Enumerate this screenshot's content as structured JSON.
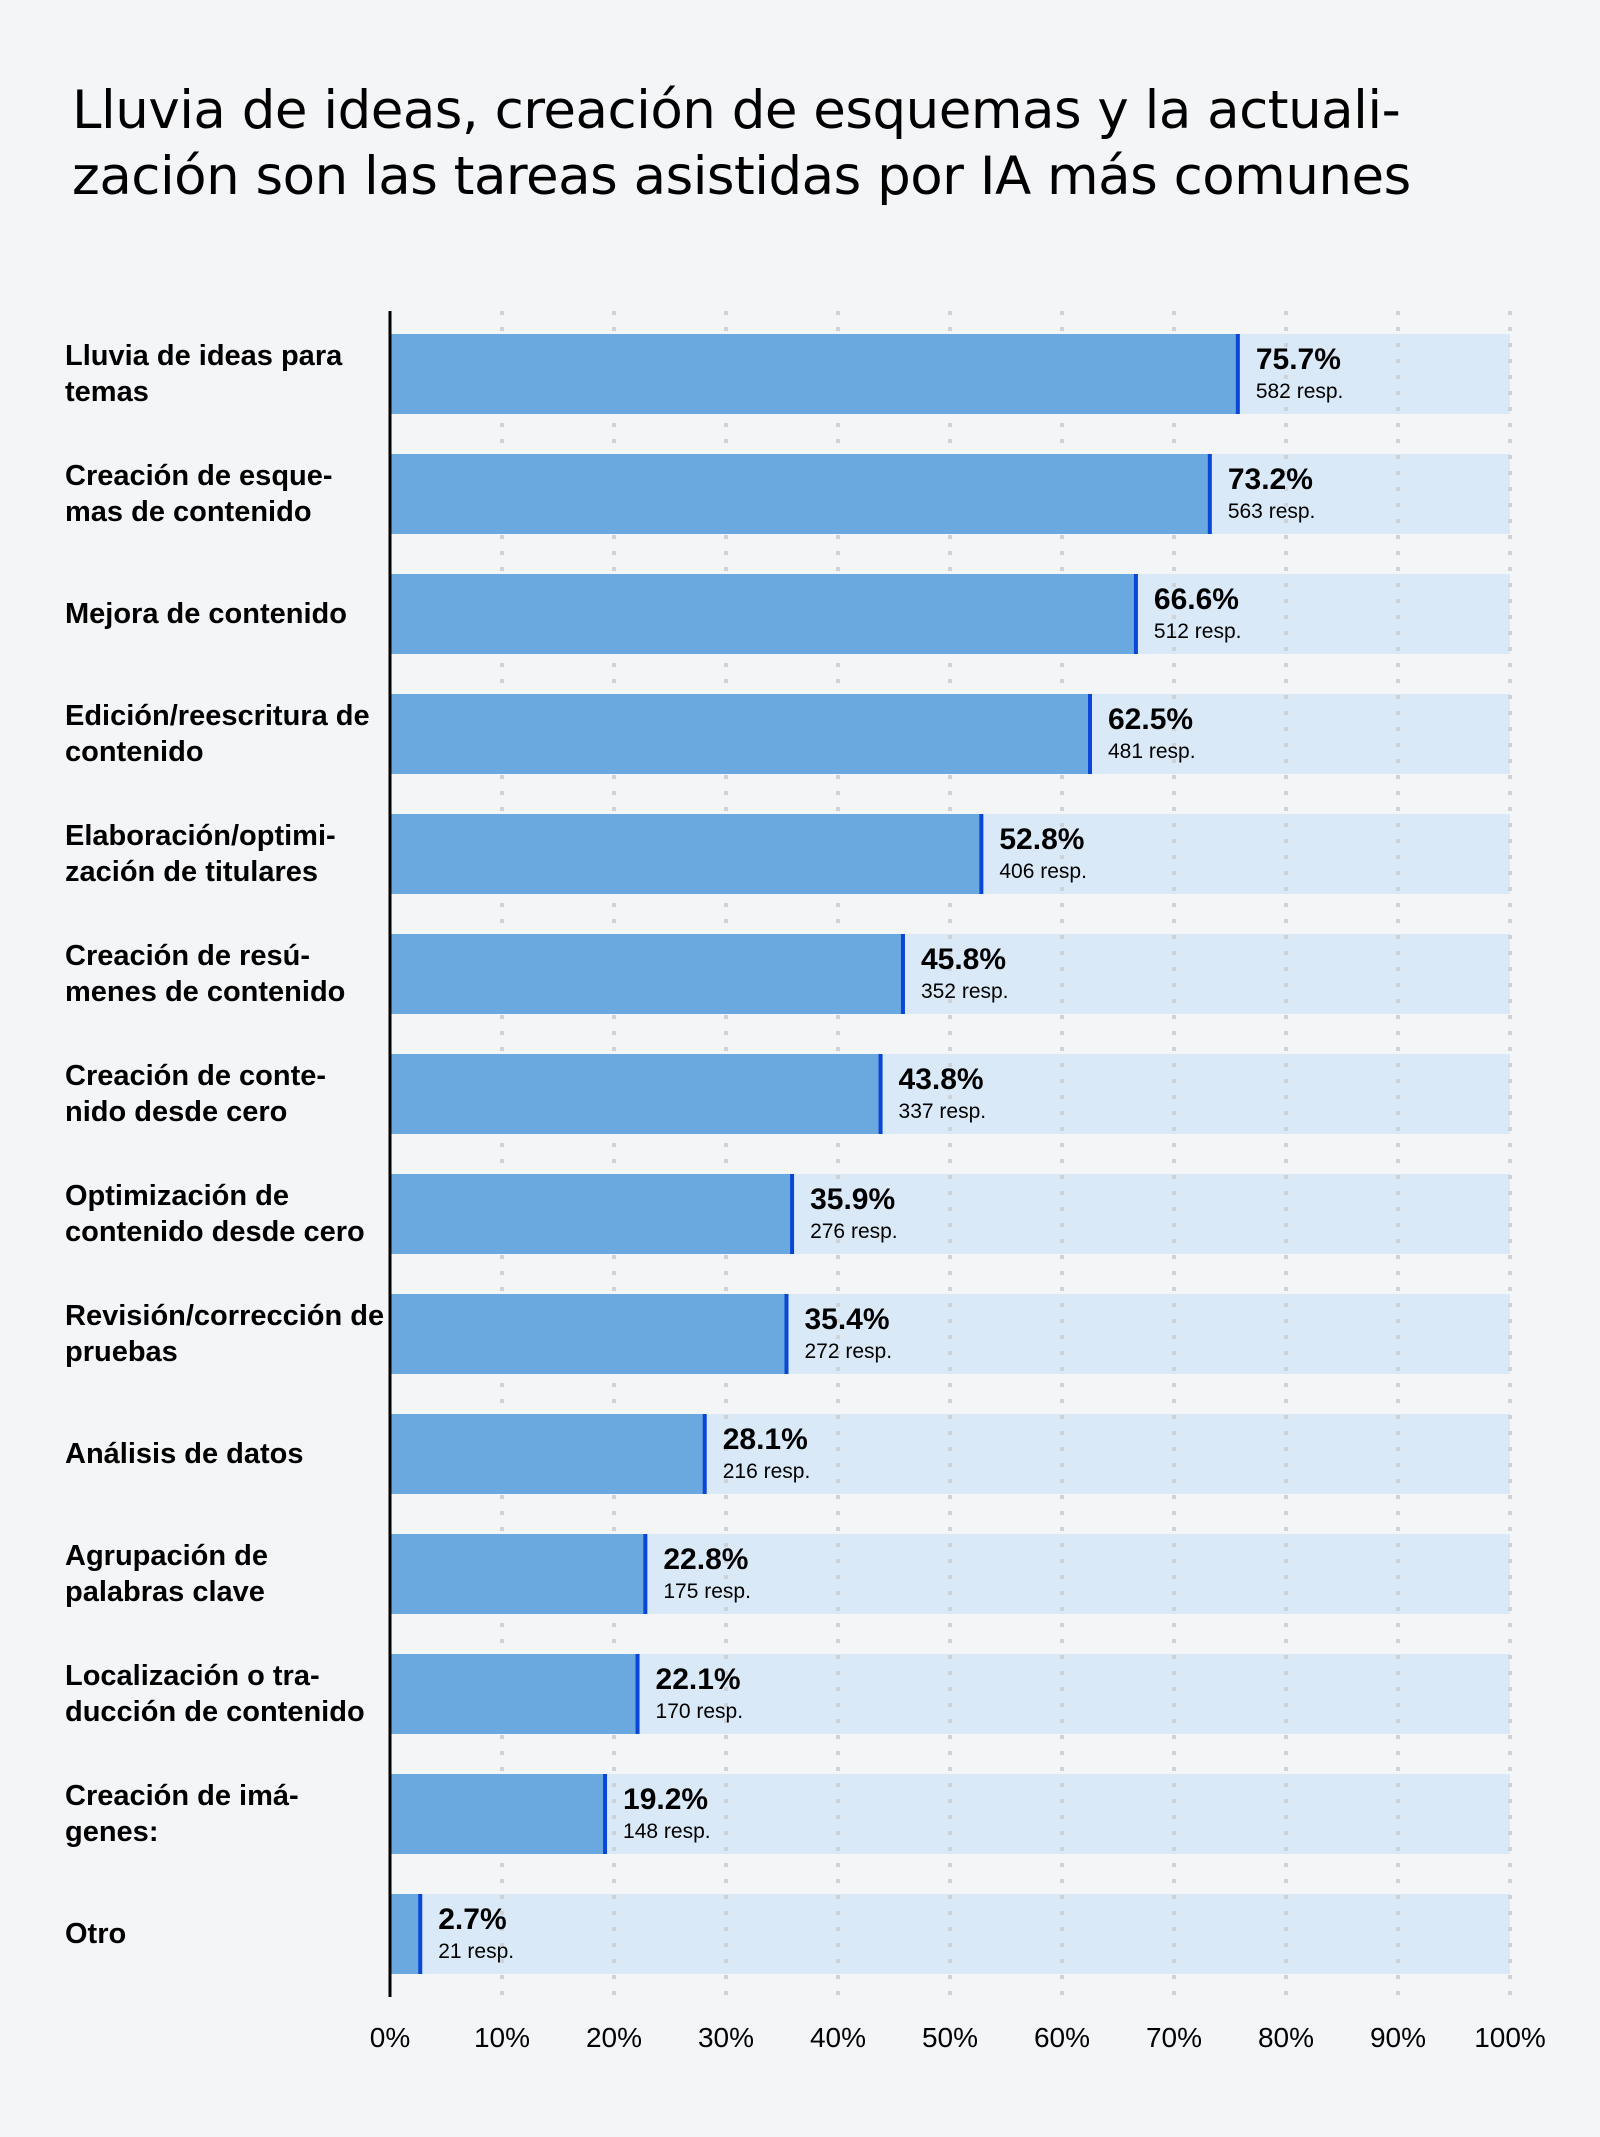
{
  "title_lines": [
    "Lluvia de ideas, creación de esquemas y la actuali-",
    "zación son las tareas asistidas por IA más comunes"
  ],
  "chart_data": {
    "type": "bar",
    "orientation": "horizontal",
    "title": "Lluvia de ideas, creación de esquemas y la actualización son las tareas asistidas por IA más comunes",
    "categories": [
      "Lluvia de ideas para temas",
      "Creación de esque- mas de contenido",
      "Mejora de contenido",
      "Edición/reescritura de contenido",
      "Elaboración/optimi- zación de titulares",
      "Creación de resú- menes de contenido",
      "Creación de conte- nido desde cero",
      "Optimización de contenido desde cero",
      "Revisión/corrección de pruebas",
      "Análisis de datos",
      "Agrupación de palabras clave",
      "Localización o tra- ducción de contenido",
      "Creación de imá- genes:",
      "Otro"
    ],
    "values": [
      75.7,
      73.2,
      66.6,
      62.5,
      52.8,
      45.8,
      43.8,
      35.9,
      35.4,
      28.1,
      22.8,
      22.1,
      19.2,
      2.7
    ],
    "value_labels": [
      "75.7%",
      "73.2%",
      "66.6%",
      "62.5%",
      "52.8%",
      "45.8%",
      "43.8%",
      "35.9%",
      "35.4%",
      "28.1%",
      "22.8%",
      "22.1%",
      "19.2%",
      "2.7%"
    ],
    "responses": [
      "582 resp.",
      "563 resp.",
      "512 resp.",
      "481 resp.",
      "406 resp.",
      "352 resp.",
      "337 resp.",
      "276 resp.",
      "272 resp.",
      "216 resp.",
      "175 resp.",
      "170 resp.",
      "148 resp.",
      "21 resp."
    ],
    "xlim": [
      0,
      100
    ],
    "xticks": [
      "0%",
      "10%",
      "20%",
      "30%",
      "40%",
      "50%",
      "60%",
      "70%",
      "80%",
      "90%",
      "100%"
    ],
    "grid": true,
    "colors": {
      "bar": "#6aa8e0",
      "track": "#d9e9f8",
      "marker": "#0a47d6",
      "grid": "#cfd3d8",
      "background": "#f4f5f7"
    }
  }
}
